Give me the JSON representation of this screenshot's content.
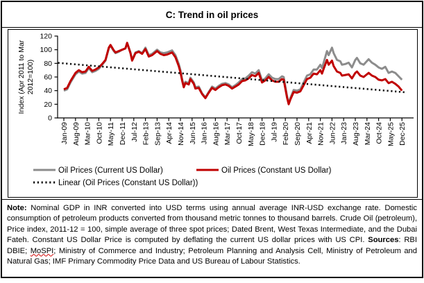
{
  "header": {
    "title": "C: Trend in oil prices"
  },
  "chart_data": {
    "type": "line",
    "title": "C: Trend in oil prices",
    "y_axis": {
      "label": "Index (Apr 2011 to Mar 2012=100)",
      "label_lines": [
        "Index (Apr 2011 to Mar",
        "2012=100)"
      ],
      "ticks": [
        0,
        20,
        40,
        60,
        80,
        100,
        120
      ],
      "range": [
        0,
        120
      ]
    },
    "x_axis": {
      "tick_labels": [
        "Jan-09",
        "Aug-09",
        "Mar-10",
        "Oct-10",
        "May-11",
        "Dec-11",
        "Jul-12",
        "Feb-13",
        "Sep-13",
        "Apr-14",
        "Nov-14",
        "Jun-15",
        "Jan-16",
        "Aug-16",
        "Mar-17",
        "Oct-17",
        "May-18",
        "Dec-18",
        "Jul-19",
        "Feb-20",
        "Sep-20",
        "Apr-21",
        "Nov-21",
        "Jun-22",
        "Jan-23",
        "Aug-23",
        "Mar-24",
        "Oct-24",
        "May-25",
        "Dec-25"
      ],
      "tick_interval_months": 7,
      "start": "Jan-09",
      "end": "Dec-25"
    },
    "sample_months": [
      0,
      2,
      4,
      6,
      7,
      9,
      11,
      13,
      15,
      17,
      19,
      21,
      23,
      25,
      27,
      28,
      30,
      31,
      33,
      35,
      37,
      38,
      40,
      41,
      43,
      45,
      47,
      49,
      51,
      53,
      55,
      56,
      58,
      60,
      62,
      65,
      67,
      69,
      70,
      71,
      72,
      73,
      75,
      76,
      78,
      79,
      81,
      83,
      85,
      87,
      89,
      91,
      93,
      95,
      97,
      99,
      101,
      103,
      105,
      107,
      109,
      111,
      113,
      115,
      117,
      119,
      121,
      123,
      125,
      127,
      129,
      131,
      132,
      134,
      135,
      136,
      138,
      140,
      142,
      144,
      146,
      148,
      150,
      152,
      154,
      155,
      156,
      158,
      159,
      161,
      162,
      164,
      166,
      167,
      169,
      171,
      173,
      175,
      176,
      178,
      180,
      183,
      185,
      187,
      189,
      191,
      193,
      195,
      197,
      199,
      201,
      203
    ],
    "series": [
      {
        "name": "Oil Prices (Current US Dollar)",
        "color": "#8c8c8c",
        "values": [
          40,
          42,
          52,
          60,
          64,
          68,
          65,
          66,
          73,
          67,
          69,
          72,
          78,
          84,
          102,
          106,
          98,
          95,
          97,
          100,
          102,
          110,
          96,
          85,
          96,
          98,
          95,
          103,
          92,
          94,
          98,
          100,
          96,
          95,
          96,
          99,
          92,
          79,
          70,
          57,
          47,
          53,
          51,
          59,
          52,
          45,
          46,
          36,
          30,
          38,
          46,
          43,
          47,
          50,
          51,
          49,
          45,
          48,
          52,
          57,
          58,
          62,
          67,
          65,
          70,
          55,
          58,
          64,
          59,
          57,
          57,
          61,
          60,
          32,
          21,
          29,
          41,
          40,
          42,
          52,
          62,
          64,
          71,
          71,
          78,
          73,
          81,
          98,
          92,
          103,
          95,
          85,
          83,
          78,
          79,
          81,
          74,
          85,
          88,
          80,
          78,
          86,
          81,
          78,
          74,
          72,
          75,
          66,
          68,
          66,
          61,
          56
        ]
      },
      {
        "name": "Oil Prices (Constant US Dollar)",
        "color": "#c00000",
        "values": [
          42,
          44,
          54,
          62,
          66,
          70,
          67,
          68,
          75,
          69,
          71,
          74,
          79,
          85,
          103,
          107,
          99,
          96,
          98,
          100,
          102,
          110,
          95,
          84,
          95,
          97,
          94,
          101,
          90,
          92,
          96,
          98,
          94,
          92,
          93,
          96,
          89,
          76,
          67,
          55,
          45,
          51,
          49,
          57,
          50,
          43,
          44,
          35,
          29,
          37,
          44,
          41,
          45,
          48,
          49,
          47,
          43,
          46,
          49,
          54,
          55,
          58,
          63,
          61,
          66,
          52,
          55,
          60,
          55,
          53,
          53,
          57,
          56,
          30,
          20,
          27,
          38,
          37,
          39,
          48,
          57,
          59,
          65,
          64,
          70,
          65,
          72,
          85,
          78,
          84,
          76,
          68,
          66,
          62,
          63,
          64,
          58,
          66,
          68,
          62,
          60,
          66,
          62,
          60,
          56,
          55,
          57,
          51,
          53,
          50,
          46,
          40
        ]
      }
    ],
    "trendline": {
      "name": "Linear (Oil Prices (Constant US Dollar))",
      "color": "#111111",
      "style": "dotted",
      "points": [
        {
          "month": 0,
          "value": 80
        },
        {
          "month": 203,
          "value": 38
        }
      ]
    },
    "legend": {
      "position": "below-x-axis",
      "rows": 2
    }
  },
  "note": {
    "segments": [
      {
        "text": "Note:",
        "bold": true
      },
      {
        "text": " Nominal GDP in INR converted into USD terms using annual average INR-USD exchange rate. Domestic consumption of petroleum products converted from thousand metric tonnes to thousand barrels. Crude Oil (petroleum), Price index, 2011-12 = 100, simple average of three spot prices; Dated Brent, West Texas Intermediate, and the Dubai Fateh. Constant US Dollar Price is computed by deflating the current US dollar prices with US CPI. "
      },
      {
        "text": "Sources",
        "bold": true
      },
      {
        "text": ": RBI DBIE; "
      },
      {
        "text": "MoSPI",
        "squiggly": true
      },
      {
        "text": "; Ministry of Commerce and Industry; Petroleum Planning and Analysis Cell, Ministry of Petroleum and Natural Gas; IMF Primary Commodity Price Data and US Bureau of Labour Statistics."
      }
    ]
  }
}
